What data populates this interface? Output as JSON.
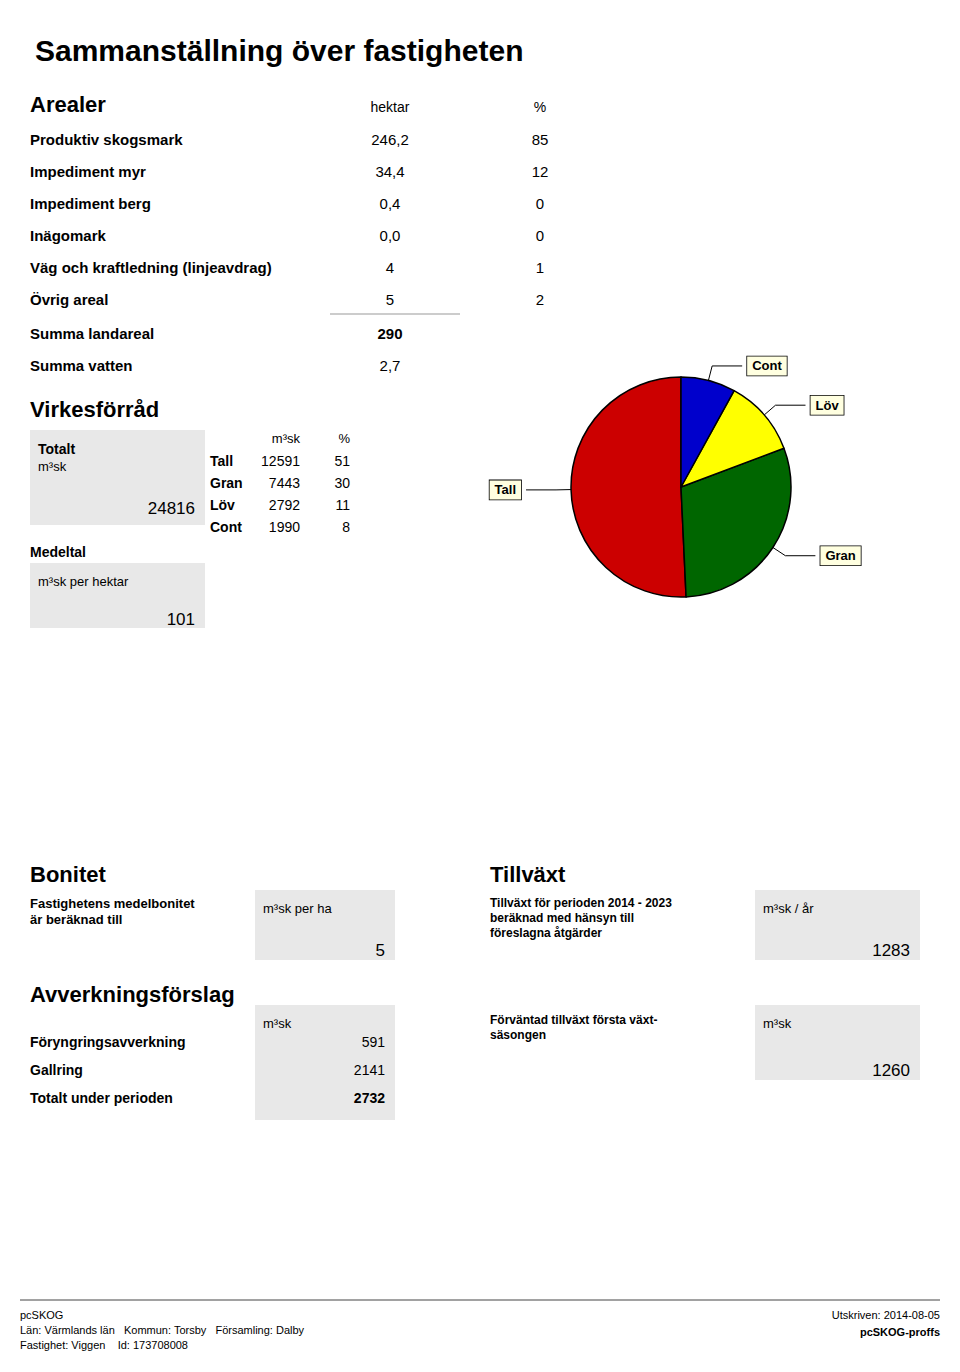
{
  "chart_data": {
    "type": "pie",
    "title": "Sammanställning över fastigheten",
    "categories": [
      "Tall",
      "Gran",
      "Löv",
      "Cont"
    ],
    "values": [
      12591,
      7443,
      2792,
      1990
    ],
    "colors": [
      "#cc0000",
      "#006600",
      "#ffff00",
      "#0000cc"
    ],
    "annotations": [
      "Arealer",
      "hektar",
      "%",
      "Produktiv skogsmark",
      "246,2",
      "85",
      "Impediment myr",
      "34,4",
      "12",
      "Impediment berg",
      "0,4",
      "0",
      "Inägomark",
      "0,0",
      "0",
      "Väg och kraftledning (linjeavdrag)",
      "4",
      "1",
      "Övrig areal",
      "5",
      "2",
      "Summa landareal",
      "290",
      "Summa vatten",
      "2,7",
      "Virkesförråd",
      "Totalt",
      "m³sk",
      "24816",
      "Medeltal",
      "m³sk per hektar",
      "101",
      "m³sk",
      "%",
      "Tall",
      "12591",
      "51",
      "Gran",
      "7443",
      "30",
      "Löv",
      "2792",
      "11",
      "Cont",
      "1990",
      "8",
      "Bonitet",
      "Fastighetens medelbonitet\när beräknad till",
      "m³sk per ha",
      "5",
      "Tillväxt",
      "Tillväxt för perioden 2014 - 2023\nberäknad med hänsyn till\nföreslagna åtgärder",
      "m³sk / år",
      "1283",
      "Avverkningsförslag",
      "m³sk",
      "Föryngringsavverkning",
      "591",
      "Gallring",
      "2141",
      "Totalt under perioden",
      "2732",
      "Förväntad tillväxt första växt-\nsäsongen",
      "m³sk",
      "1260",
      "pcSKOG",
      "Utskriven: 2014-08-05",
      "Län: Värmlands län   Kommun: Torsby   Församling: Dalby",
      "pcSKOG-proffs",
      "Fastighet: Viggen    Id: 173708008"
    ]
  }
}
